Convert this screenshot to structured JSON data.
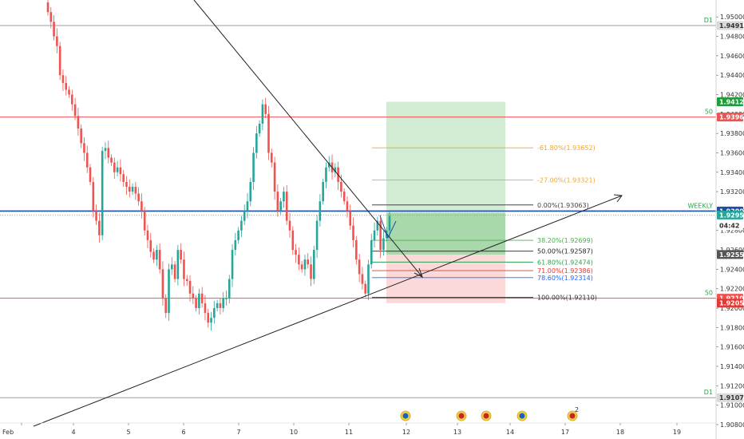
{
  "chart_data": {
    "type": "candlestick",
    "x_ticks": [
      "Feb",
      "4",
      "5",
      "6",
      "7",
      "10",
      "11",
      "12",
      "13",
      "14",
      "17",
      "18",
      "19"
    ],
    "y_range": [
      1.9075,
      1.9515
    ],
    "y_ticks": [
      "1.95000",
      "1.94800",
      "1.94600",
      "1.94400",
      "1.94200",
      "1.94000",
      "1.93800",
      "1.93600",
      "1.93400",
      "1.93200",
      "1.93000",
      "1.92800",
      "1.92600",
      "1.92400",
      "1.92200",
      "1.92000",
      "1.91800",
      "1.91600",
      "1.91400",
      "1.91200",
      "1.91000",
      "1.90800"
    ],
    "close_series": [
      1.9505,
      1.9495,
      1.948,
      1.947,
      1.944,
      1.9432,
      1.9425,
      1.942,
      1.941,
      1.9398,
      1.9385,
      1.937,
      1.936,
      1.9345,
      1.933,
      1.93,
      1.929,
      1.9275,
      1.9362,
      1.9365,
      1.9355,
      1.935,
      1.934,
      1.9345,
      1.9338,
      1.933,
      1.9325,
      1.932,
      1.9325,
      1.9318,
      1.931,
      1.93,
      1.928,
      1.927,
      1.9258,
      1.925,
      1.926,
      1.924,
      1.921,
      1.9195,
      1.924,
      1.9245,
      1.923,
      1.926,
      1.925,
      1.923,
      1.9228,
      1.9215,
      1.921,
      1.92,
      1.9215,
      1.9205,
      1.9195,
      1.9185,
      1.919,
      1.92,
      1.9205,
      1.92,
      1.921,
      1.921,
      1.923,
      1.926,
      1.927,
      1.928,
      1.929,
      1.93,
      1.931,
      1.933,
      1.936,
      1.938,
      1.939,
      1.941,
      1.94,
      1.936,
      1.935,
      1.932,
      1.93,
      1.931,
      1.932,
      1.929,
      1.928,
      1.926,
      1.9255,
      1.9245,
      1.924,
      1.925,
      1.9245,
      1.923,
      1.926,
      1.929,
      1.931,
      1.933,
      1.9345,
      1.935,
      1.934,
      1.9345,
      1.933,
      1.932,
      1.931,
      1.93,
      1.9285,
      1.927,
      1.925,
      1.9235,
      1.9225,
      1.9215,
      1.9245,
      1.927,
      1.928,
      1.929,
      1.926,
      1.9272,
      1.928,
      1.9295
    ],
    "horizontal_lines": [
      {
        "value": 1.94911,
        "label": "D1",
        "color": "#9e9e9e",
        "badge": "1.94911"
      },
      {
        "value": 1.93969,
        "label": "50",
        "color": "#ef5350",
        "badge": "1.93969"
      },
      {
        "value": 1.93,
        "label": "WEEKLY",
        "color": "#1e4fa8",
        "badge": "1.93000"
      },
      {
        "value": 1.92102,
        "label": "50",
        "color": "#ef5350",
        "badge": "1.92102"
      },
      {
        "value": 1.91077,
        "label": "D1",
        "color": "#9e9e9e",
        "badge": "1.91077"
      }
    ],
    "price_badges": [
      {
        "value": 1.94126,
        "text": "1.94126",
        "color": "#1f9d3d"
      },
      {
        "value": 1.92959,
        "text": "1.92959",
        "color": "#26a69a"
      },
      {
        "value": 1.9285,
        "text": "04:42",
        "color": "#ffffff"
      },
      {
        "value": 1.92552,
        "text": "1.92552",
        "color": "#555555"
      },
      {
        "value": 1.92052,
        "text": "1.92052",
        "color": "#e53935"
      }
    ],
    "fib_levels": [
      {
        "label": "-61.80%(1.93652)",
        "value": 1.93652,
        "color": "#f5a623"
      },
      {
        "label": "-27.00%(1.93321)",
        "value": 1.93321,
        "color": "#f5a623"
      },
      {
        "label": "0.00%(1.93063)",
        "value": 1.93063,
        "color": "#444444"
      },
      {
        "label": "38.20%(1.92699)",
        "value": 1.92699,
        "color": "#4caf50"
      },
      {
        "label": "50.00%(1.92587)",
        "value": 1.92587,
        "color": "#222222"
      },
      {
        "label": "61.80%(1.92474)",
        "value": 1.92474,
        "color": "#2e9e4a"
      },
      {
        "label": "71.00%(1.92386)",
        "value": 1.92386,
        "color": "#e53935"
      },
      {
        "label": "78.60%(1.92314)",
        "value": 1.92314,
        "color": "#2962ff"
      },
      {
        "label": "100.00%(1.92110)",
        "value": 1.9211,
        "color": "#333333"
      }
    ],
    "position": {
      "entry": 1.92552,
      "target": 1.94126,
      "stop": 1.92052
    },
    "grid": false
  }
}
